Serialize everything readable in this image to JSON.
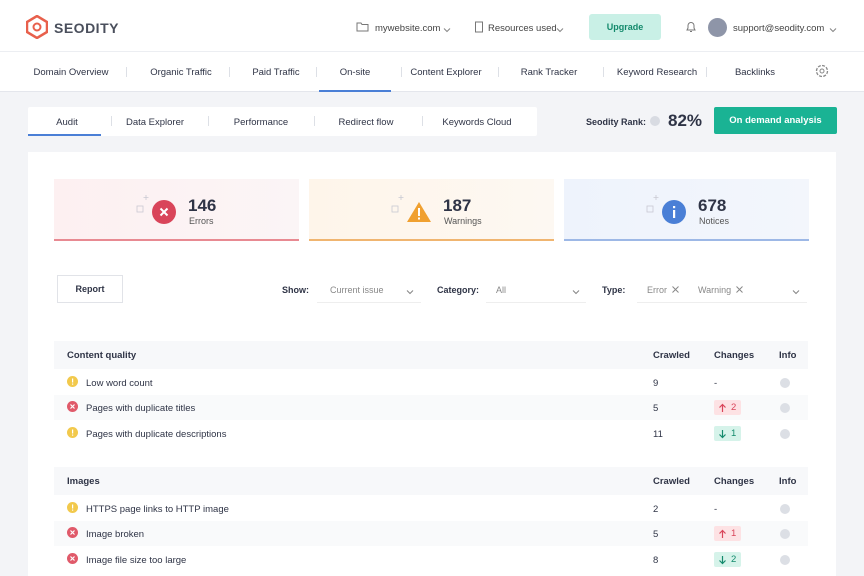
{
  "header": {
    "brand": "SEODITY",
    "site": "mywebsite.com",
    "resources": "Resources used",
    "upgrade": "Upgrade",
    "email": "support@seodity.com"
  },
  "nav": {
    "items": [
      "Domain Overview",
      "Organic Traffic",
      "Paid Traffic",
      "On-site",
      "Content Explorer",
      "Rank Tracker",
      "Keyword Research",
      "Backlinks"
    ],
    "active": 3
  },
  "tabs": {
    "items": [
      "Audit",
      "Data Explorer",
      "Performance",
      "Redirect flow",
      "Keywords Cloud"
    ],
    "active": 0
  },
  "rank": {
    "label": "Seodity Rank:",
    "value": "82%"
  },
  "analysis_button": "On demand analysis",
  "summary": [
    {
      "count": 146,
      "label": "Errors",
      "kind": "error"
    },
    {
      "count": 187,
      "label": "Warnings",
      "kind": "warning"
    },
    {
      "count": 678,
      "label": "Notices",
      "kind": "notice"
    }
  ],
  "filters": {
    "report": "Report",
    "show_label": "Show:",
    "show_value": "Current issue",
    "category_label": "Category:",
    "category_value": "All",
    "type_label": "Type:",
    "type_values": [
      "Error",
      "Warning"
    ]
  },
  "sections": [
    {
      "title": "Content quality",
      "columns": [
        "Crawled",
        "Changes",
        "Info"
      ],
      "rows": [
        {
          "status": "warning",
          "label": "Low word count",
          "crawled": 9,
          "change": "-"
        },
        {
          "status": "error",
          "label": "Pages with duplicate titles",
          "crawled": 5,
          "change": {
            "direction": "up",
            "value": 2
          }
        },
        {
          "status": "warning",
          "label": "Pages with duplicate descriptions",
          "crawled": 11,
          "change": {
            "direction": "down",
            "value": 1
          }
        }
      ]
    },
    {
      "title": "Images",
      "columns": [
        "Crawled",
        "Changes",
        "Info"
      ],
      "rows": [
        {
          "status": "warning",
          "label": "HTTPS page links to HTTP image",
          "crawled": 2,
          "change": "-"
        },
        {
          "status": "error",
          "label": "Image broken",
          "crawled": 5,
          "change": {
            "direction": "up",
            "value": 1
          }
        },
        {
          "status": "error",
          "label": "Image file size too large",
          "crawled": 8,
          "change": {
            "direction": "down",
            "value": 2
          }
        }
      ]
    }
  ]
}
